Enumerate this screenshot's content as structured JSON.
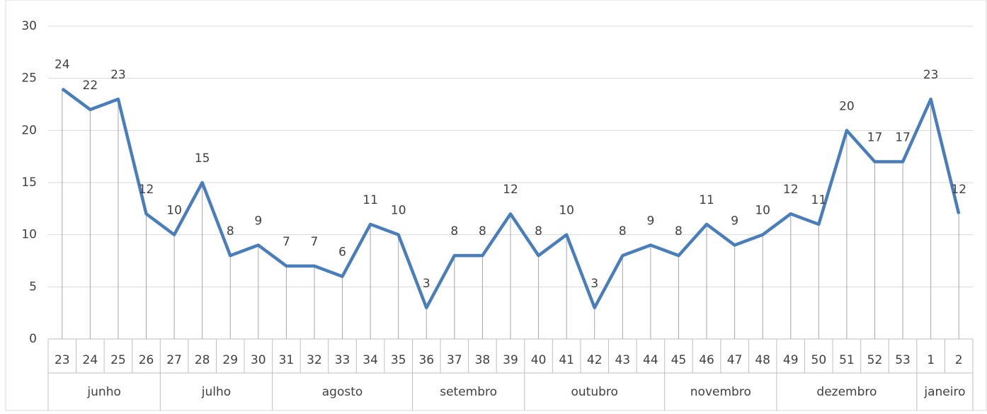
{
  "chart_data": {
    "type": "line",
    "groups": [
      {
        "name": "junho",
        "categories": [
          "23",
          "24",
          "25",
          "26"
        ]
      },
      {
        "name": "julho",
        "categories": [
          "27",
          "28",
          "29",
          "30"
        ]
      },
      {
        "name": "agosto",
        "categories": [
          "31",
          "32",
          "33",
          "34",
          "35"
        ]
      },
      {
        "name": "setembro",
        "categories": [
          "36",
          "37",
          "38",
          "39"
        ]
      },
      {
        "name": "outubro",
        "categories": [
          "40",
          "41",
          "42",
          "43",
          "44"
        ]
      },
      {
        "name": "novembro",
        "categories": [
          "45",
          "46",
          "47",
          "48"
        ]
      },
      {
        "name": "dezembro",
        "categories": [
          "49",
          "50",
          "51",
          "52",
          "53"
        ]
      },
      {
        "name": "janeiro",
        "categories": [
          "1",
          "2"
        ]
      }
    ],
    "values": [
      24,
      22,
      23,
      12,
      10,
      15,
      8,
      9,
      7,
      7,
      6,
      11,
      10,
      3,
      8,
      8,
      12,
      8,
      10,
      3,
      8,
      9,
      8,
      11,
      9,
      10,
      12,
      11,
      20,
      17,
      17,
      23,
      12
    ],
    "color": "#4a7ebb",
    "ylim": [
      0,
      30
    ],
    "yticks": [
      0,
      5,
      10,
      15,
      20,
      25,
      30
    ],
    "grid": true,
    "drop_lines": true
  }
}
